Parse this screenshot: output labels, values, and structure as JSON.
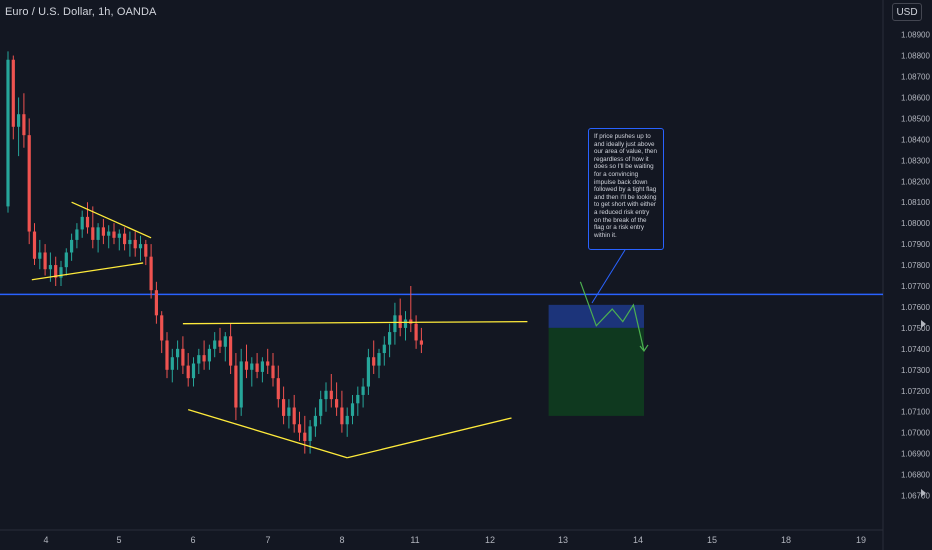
{
  "header": {
    "symbol": "Euro / U.S. Dollar, 1h, OANDA",
    "currency_button": "USD"
  },
  "note": {
    "text": "If price pushes up to and ideally just above our area of value, then regardless of how it does so I'll be waiting for a convincing impulse back down followed by a tight flag and then I'll be looking to get short with either a reduced risk entry on the break of the flag or a risk entry within it."
  },
  "colors": {
    "background": "#131722",
    "candle_up": "#26a69a",
    "candle_down": "#ef5350",
    "trendline": "#ffeb3b",
    "level_line": "#2962ff",
    "projection": "#4caf50",
    "risk_zone": "#1e3a8a",
    "target_zone": "#0f3d1f"
  },
  "icons": [
    "arrow-right-icon",
    "arrow-right-icon"
  ],
  "chart_data": {
    "type": "candlestick",
    "symbol": "EURUSD",
    "timeframe": "1h",
    "y_axis_ticks": [
      "1.08900",
      "1.08800",
      "1.08700",
      "1.08600",
      "1.08500",
      "1.08400",
      "1.08300",
      "1.08200",
      "1.08100",
      "1.08000",
      "1.07900",
      "1.07800",
      "1.07700",
      "1.07600",
      "1.07500",
      "1.07400",
      "1.07300",
      "1.07200",
      "1.07100",
      "1.07000",
      "1.06900",
      "1.06800",
      "1.06700"
    ],
    "x_axis_ticks": [
      "4",
      "5",
      "6",
      "7",
      "8",
      "11",
      "12",
      "13",
      "14",
      "15",
      "18",
      "19"
    ],
    "ylim": [
      1.0667,
      1.0902
    ],
    "horizontal_level": 1.0766,
    "trendlines": [
      {
        "name": "upper-flag-line",
        "points": [
          [
            12.0,
            1.081
          ],
          [
            27.0,
            1.0793
          ]
        ]
      },
      {
        "name": "lower-flag-line",
        "points": [
          [
            4.5,
            1.0773
          ],
          [
            25.5,
            1.0781
          ]
        ]
      },
      {
        "name": "upper-range-line",
        "points": [
          [
            33.0,
            1.0752
          ],
          [
            98.0,
            1.0753
          ]
        ]
      },
      {
        "name": "lower-range-line",
        "points": [
          [
            34.0,
            1.0711
          ],
          [
            64.0,
            1.0688
          ]
        ]
      },
      {
        "name": "rising-support-line",
        "points": [
          [
            64.0,
            1.0688
          ],
          [
            95.0,
            1.0707
          ]
        ]
      }
    ],
    "projection_path": [
      [
        108.0,
        1.0772
      ],
      [
        111.0,
        1.0751
      ],
      [
        114.0,
        1.0759
      ],
      [
        116.0,
        1.0753
      ],
      [
        118.0,
        1.0761
      ],
      [
        120.0,
        1.0739
      ]
    ],
    "short_position": {
      "entry": 1.075,
      "stop": 1.0761,
      "target": 1.0708
    },
    "candles": [
      [
        1.0808,
        1.0882,
        1.0805,
        1.0878
      ],
      [
        1.0878,
        1.088,
        1.084,
        1.0846
      ],
      [
        1.0846,
        1.086,
        1.0832,
        1.0852
      ],
      [
        1.0852,
        1.0862,
        1.0836,
        1.0842
      ],
      [
        1.0842,
        1.085,
        1.079,
        1.0796
      ],
      [
        1.0796,
        1.08,
        1.078,
        1.0783
      ],
      [
        1.0783,
        1.0792,
        1.0778,
        1.0786
      ],
      [
        1.0786,
        1.079,
        1.0775,
        1.0778
      ],
      [
        1.0778,
        1.0786,
        1.0772,
        1.078
      ],
      [
        1.078,
        1.0784,
        1.077,
        1.0774
      ],
      [
        1.0774,
        1.0782,
        1.077,
        1.0779
      ],
      [
        1.0779,
        1.0788,
        1.0775,
        1.0786
      ],
      [
        1.0786,
        1.0795,
        1.0782,
        1.0792
      ],
      [
        1.0792,
        1.08,
        1.0788,
        1.0797
      ],
      [
        1.0797,
        1.0806,
        1.0793,
        1.0803
      ],
      [
        1.0803,
        1.081,
        1.0795,
        1.0798
      ],
      [
        1.0798,
        1.0808,
        1.0788,
        1.0792
      ],
      [
        1.0792,
        1.08,
        1.0786,
        1.0798
      ],
      [
        1.0798,
        1.0802,
        1.079,
        1.0794
      ],
      [
        1.0794,
        1.0799,
        1.0788,
        1.0796
      ],
      [
        1.0796,
        1.08,
        1.079,
        1.0793
      ],
      [
        1.0793,
        1.0797,
        1.0787,
        1.0795
      ],
      [
        1.0795,
        1.0798,
        1.0787,
        1.079
      ],
      [
        1.079,
        1.0796,
        1.0784,
        1.0792
      ],
      [
        1.0792,
        1.0796,
        1.0784,
        1.0788
      ],
      [
        1.0788,
        1.0794,
        1.0782,
        1.079
      ],
      [
        1.079,
        1.0792,
        1.078,
        1.0784
      ],
      [
        1.0784,
        1.079,
        1.0764,
        1.0768
      ],
      [
        1.0768,
        1.0772,
        1.0752,
        1.0756
      ],
      [
        1.0756,
        1.0758,
        1.0738,
        1.0744
      ],
      [
        1.0744,
        1.0748,
        1.0726,
        1.073
      ],
      [
        1.073,
        1.074,
        1.0724,
        1.0736
      ],
      [
        1.0736,
        1.0744,
        1.073,
        1.074
      ],
      [
        1.074,
        1.0746,
        1.0728,
        1.0732
      ],
      [
        1.0732,
        1.0738,
        1.0722,
        1.0726
      ],
      [
        1.0726,
        1.0736,
        1.0722,
        1.0733
      ],
      [
        1.0733,
        1.074,
        1.0728,
        1.0737
      ],
      [
        1.0737,
        1.0744,
        1.073,
        1.0734
      ],
      [
        1.0734,
        1.0742,
        1.073,
        1.074
      ],
      [
        1.074,
        1.0748,
        1.0736,
        1.0744
      ],
      [
        1.0744,
        1.075,
        1.0738,
        1.0741
      ],
      [
        1.0741,
        1.0748,
        1.0734,
        1.0746
      ],
      [
        1.0746,
        1.0752,
        1.0728,
        1.0732
      ],
      [
        1.0732,
        1.0738,
        1.0706,
        1.0712
      ],
      [
        1.0712,
        1.074,
        1.0708,
        1.0734
      ],
      [
        1.0734,
        1.0742,
        1.0726,
        1.073
      ],
      [
        1.073,
        1.0736,
        1.0722,
        1.0733
      ],
      [
        1.0733,
        1.0738,
        1.0726,
        1.0729
      ],
      [
        1.0729,
        1.0736,
        1.0724,
        1.0734
      ],
      [
        1.0734,
        1.074,
        1.0728,
        1.0732
      ],
      [
        1.0732,
        1.0738,
        1.0722,
        1.0726
      ],
      [
        1.0726,
        1.0732,
        1.0712,
        1.0716
      ],
      [
        1.0716,
        1.0722,
        1.0704,
        1.0708
      ],
      [
        1.0708,
        1.0716,
        1.0702,
        1.0712
      ],
      [
        1.0712,
        1.0718,
        1.07,
        1.0704
      ],
      [
        1.0704,
        1.071,
        1.0696,
        1.07
      ],
      [
        1.07,
        1.0708,
        1.069,
        1.0696
      ],
      [
        1.0696,
        1.0706,
        1.069,
        1.0703
      ],
      [
        1.0703,
        1.0712,
        1.0698,
        1.0708
      ],
      [
        1.0708,
        1.072,
        1.0704,
        1.0716
      ],
      [
        1.0716,
        1.0724,
        1.071,
        1.072
      ],
      [
        1.072,
        1.0728,
        1.0712,
        1.0716
      ],
      [
        1.0716,
        1.0724,
        1.0708,
        1.0712
      ],
      [
        1.0712,
        1.072,
        1.07,
        1.0704
      ],
      [
        1.0704,
        1.0712,
        1.0698,
        1.0708
      ],
      [
        1.0708,
        1.0718,
        1.0704,
        1.0714
      ],
      [
        1.0714,
        1.0722,
        1.0708,
        1.0718
      ],
      [
        1.0718,
        1.0726,
        1.0712,
        1.0722
      ],
      [
        1.0722,
        1.074,
        1.0718,
        1.0736
      ],
      [
        1.0736,
        1.0744,
        1.0728,
        1.0732
      ],
      [
        1.0732,
        1.074,
        1.0726,
        1.0738
      ],
      [
        1.0738,
        1.0746,
        1.0732,
        1.0742
      ],
      [
        1.0742,
        1.0752,
        1.0736,
        1.0748
      ],
      [
        1.0748,
        1.0762,
        1.0742,
        1.0756
      ],
      [
        1.0756,
        1.0764,
        1.0746,
        1.075
      ],
      [
        1.075,
        1.0758,
        1.0744,
        1.0754
      ],
      [
        1.0754,
        1.077,
        1.0748,
        1.0752
      ],
      [
        1.0752,
        1.0756,
        1.074,
        1.0744
      ],
      [
        1.0744,
        1.075,
        1.0738,
        1.0742
      ]
    ]
  }
}
